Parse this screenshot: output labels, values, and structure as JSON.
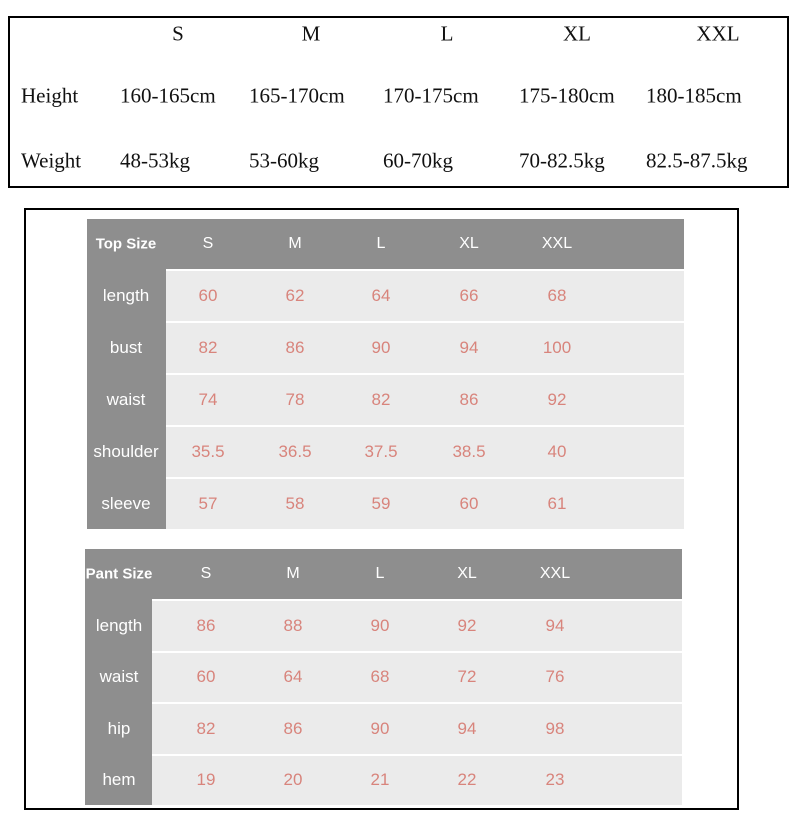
{
  "size_table": {
    "header": [
      "S",
      "M",
      "L",
      "XL",
      "XXL"
    ],
    "rows": [
      [
        "Height",
        "160-165cm",
        "165-170cm",
        "170-175cm",
        "175-180cm",
        "180-185cm"
      ],
      [
        "Weight",
        "48-53kg",
        "53-60kg",
        "60-70kg",
        "70-82.5kg",
        "82.5-87.5kg"
      ]
    ]
  },
  "top_table": {
    "header": [
      "Top Size",
      "S",
      "M",
      "L",
      "XL",
      "XXL"
    ],
    "rows": [
      [
        "length",
        60,
        62,
        64,
        66,
        68
      ],
      [
        "bust",
        82,
        86,
        90,
        94,
        100
      ],
      [
        "waist",
        74,
        78,
        82,
        86,
        92
      ],
      [
        "shoulder",
        35.5,
        36.5,
        37.5,
        38.5,
        40
      ],
      [
        "sleeve",
        57,
        58,
        59,
        60,
        61
      ]
    ]
  },
  "pant_table": {
    "header": [
      "Pant Size",
      "S",
      "M",
      "L",
      "XL",
      "XXL"
    ],
    "rows": [
      [
        "length",
        86,
        88,
        90,
        92,
        94
      ],
      [
        "waist",
        60,
        64,
        68,
        72,
        76
      ],
      [
        "hip",
        82,
        86,
        90,
        94,
        98
      ],
      [
        "hem",
        19,
        20,
        21,
        22,
        23
      ]
    ]
  }
}
